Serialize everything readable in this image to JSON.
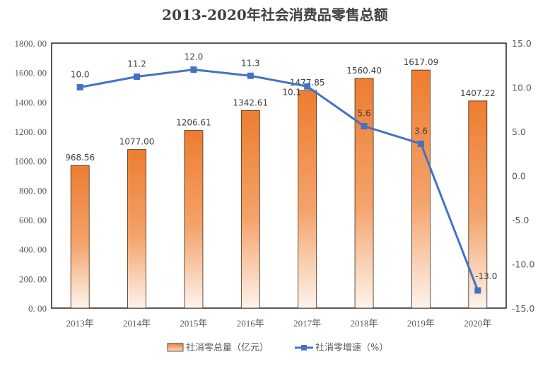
{
  "chart_data": {
    "type": "bar+line",
    "title": "2013-2020年社会消费品零售总额",
    "categories": [
      "2013年",
      "2014年",
      "2015年",
      "2016年",
      "2017年",
      "2018年",
      "2019年",
      "2020年"
    ],
    "series": [
      {
        "name": "社消零总量（亿元）",
        "type": "bar",
        "axis": "left",
        "values": [
          968.56,
          1077.0,
          1206.61,
          1342.61,
          1477.85,
          1560.4,
          1617.09,
          1407.22
        ],
        "labels": [
          "968.56",
          "1077.00",
          "1206.61",
          "1342.61",
          "1477.85",
          "1560.40",
          "1617.09",
          "1407.22"
        ],
        "color": "#ED7D31"
      },
      {
        "name": "社消零增速（%）",
        "type": "line",
        "axis": "right",
        "values": [
          10.0,
          11.2,
          12.0,
          11.3,
          10.1,
          5.6,
          3.6,
          -13.0
        ],
        "labels": [
          "10.0",
          "11.2",
          "12.0",
          "11.3",
          "10.1",
          "5.6",
          "3.6",
          "-13.0"
        ],
        "color": "#4472C4"
      }
    ],
    "left_axis": {
      "range": [
        0,
        1800
      ],
      "ticks": [
        "0. 00",
        "200. 00",
        "400. 00",
        "600. 00",
        "800. 00",
        "1000. 00",
        "1200. 00",
        "1400. 00",
        "1600. 00",
        "1800. 00"
      ]
    },
    "right_axis": {
      "range": [
        -15,
        15
      ],
      "ticks": [
        "-15.0",
        "-10.0",
        "-5.0",
        "0.0",
        "5.0",
        "10.0",
        "15.0"
      ]
    },
    "grid": false,
    "legend": "bottom"
  }
}
